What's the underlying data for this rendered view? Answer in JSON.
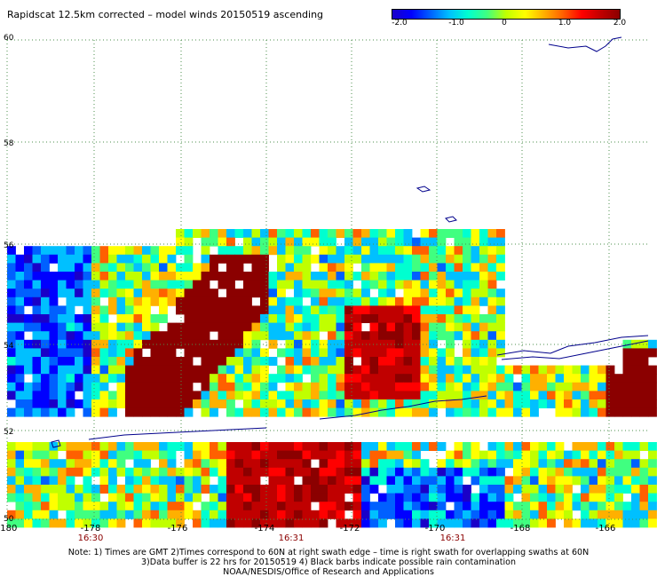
{
  "title": "Rapidscat 12.5km corrected – model winds 20150519 ascending",
  "colorbar": {
    "ticks": [
      "-2.0",
      "-1.0",
      "0",
      "1.0",
      "2.0"
    ],
    "min": -2.0,
    "max": 2.0,
    "colors": [
      "#1a00c8",
      "#0000ff",
      "#0060ff",
      "#00c0ff",
      "#00ffd0",
      "#40ff80",
      "#c0ff00",
      "#ffff00",
      "#ffb000",
      "#ff6000",
      "#ff0000",
      "#c00000",
      "#8b0000"
    ]
  },
  "axes": {
    "lat_labels": [
      "60",
      "58",
      "56",
      "54",
      "52",
      "50"
    ],
    "lon_labels": [
      "-180",
      "-178",
      "-176",
      "-174",
      "-172",
      "-170",
      "-168",
      "-166"
    ],
    "lat_range": [
      50,
      60
    ],
    "lon_range": [
      -180,
      -165
    ]
  },
  "times": [
    "16:30",
    "16:31",
    "16:31"
  ],
  "notes": [
    "Note: 1) Times are GMT 2)Times correspond to 60N at right swath edge – time is right swath for overlapping swaths at 60N",
    "3)Data buffer is 22 hrs for 20150519 4) Black barbs indicate possible rain contamination",
    "NOAA/NESDIS/Office of Research and Applications"
  ]
}
